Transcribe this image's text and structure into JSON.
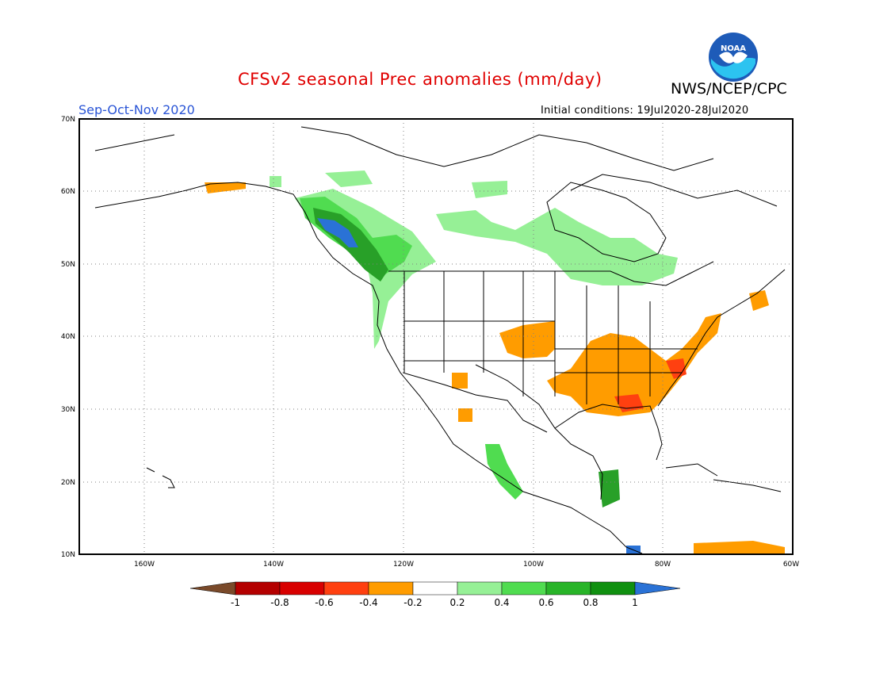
{
  "header": {
    "title": "CFSv2 seasonal Prec anomalies (mm/day)",
    "org": "NWS/NCEP/CPC",
    "season": "Sep-Oct-Nov 2020",
    "initial_conditions": "Initial conditions: 19Jul2020-28Jul2020",
    "logo_text": "NOAA"
  },
  "map": {
    "lon_labels": [
      "160W",
      "140W",
      "120W",
      "100W",
      "80W",
      "60W"
    ],
    "lat_labels": [
      "70N",
      "60N",
      "50N",
      "40N",
      "30N",
      "20N",
      "10N"
    ],
    "lon_range": [
      -170,
      -60
    ],
    "lat_range": [
      10,
      70
    ]
  },
  "colorbar": {
    "ticks": [
      "-1",
      "-0.8",
      "-0.6",
      "-0.4",
      "-0.2",
      "0.2",
      "0.4",
      "0.6",
      "0.8",
      "1"
    ],
    "colors": [
      "#7a4a2a",
      "#b40000",
      "#d80000",
      "#ff4010",
      "#ff9c00",
      "#ffffff",
      "#96f096",
      "#50dc50",
      "#28b428",
      "#109010",
      "#2a72d6"
    ]
  },
  "colors": {
    "title": "#e00000",
    "season": "#2a55d6",
    "wet_light": "#96f096",
    "wet_mid": "#50dc50",
    "wet_dark": "#28a028",
    "wet_vdark": "#0e8a0e",
    "wet_blue": "#2a72d6",
    "dry_orange": "#ff9c00",
    "dry_red": "#ff4010"
  }
}
